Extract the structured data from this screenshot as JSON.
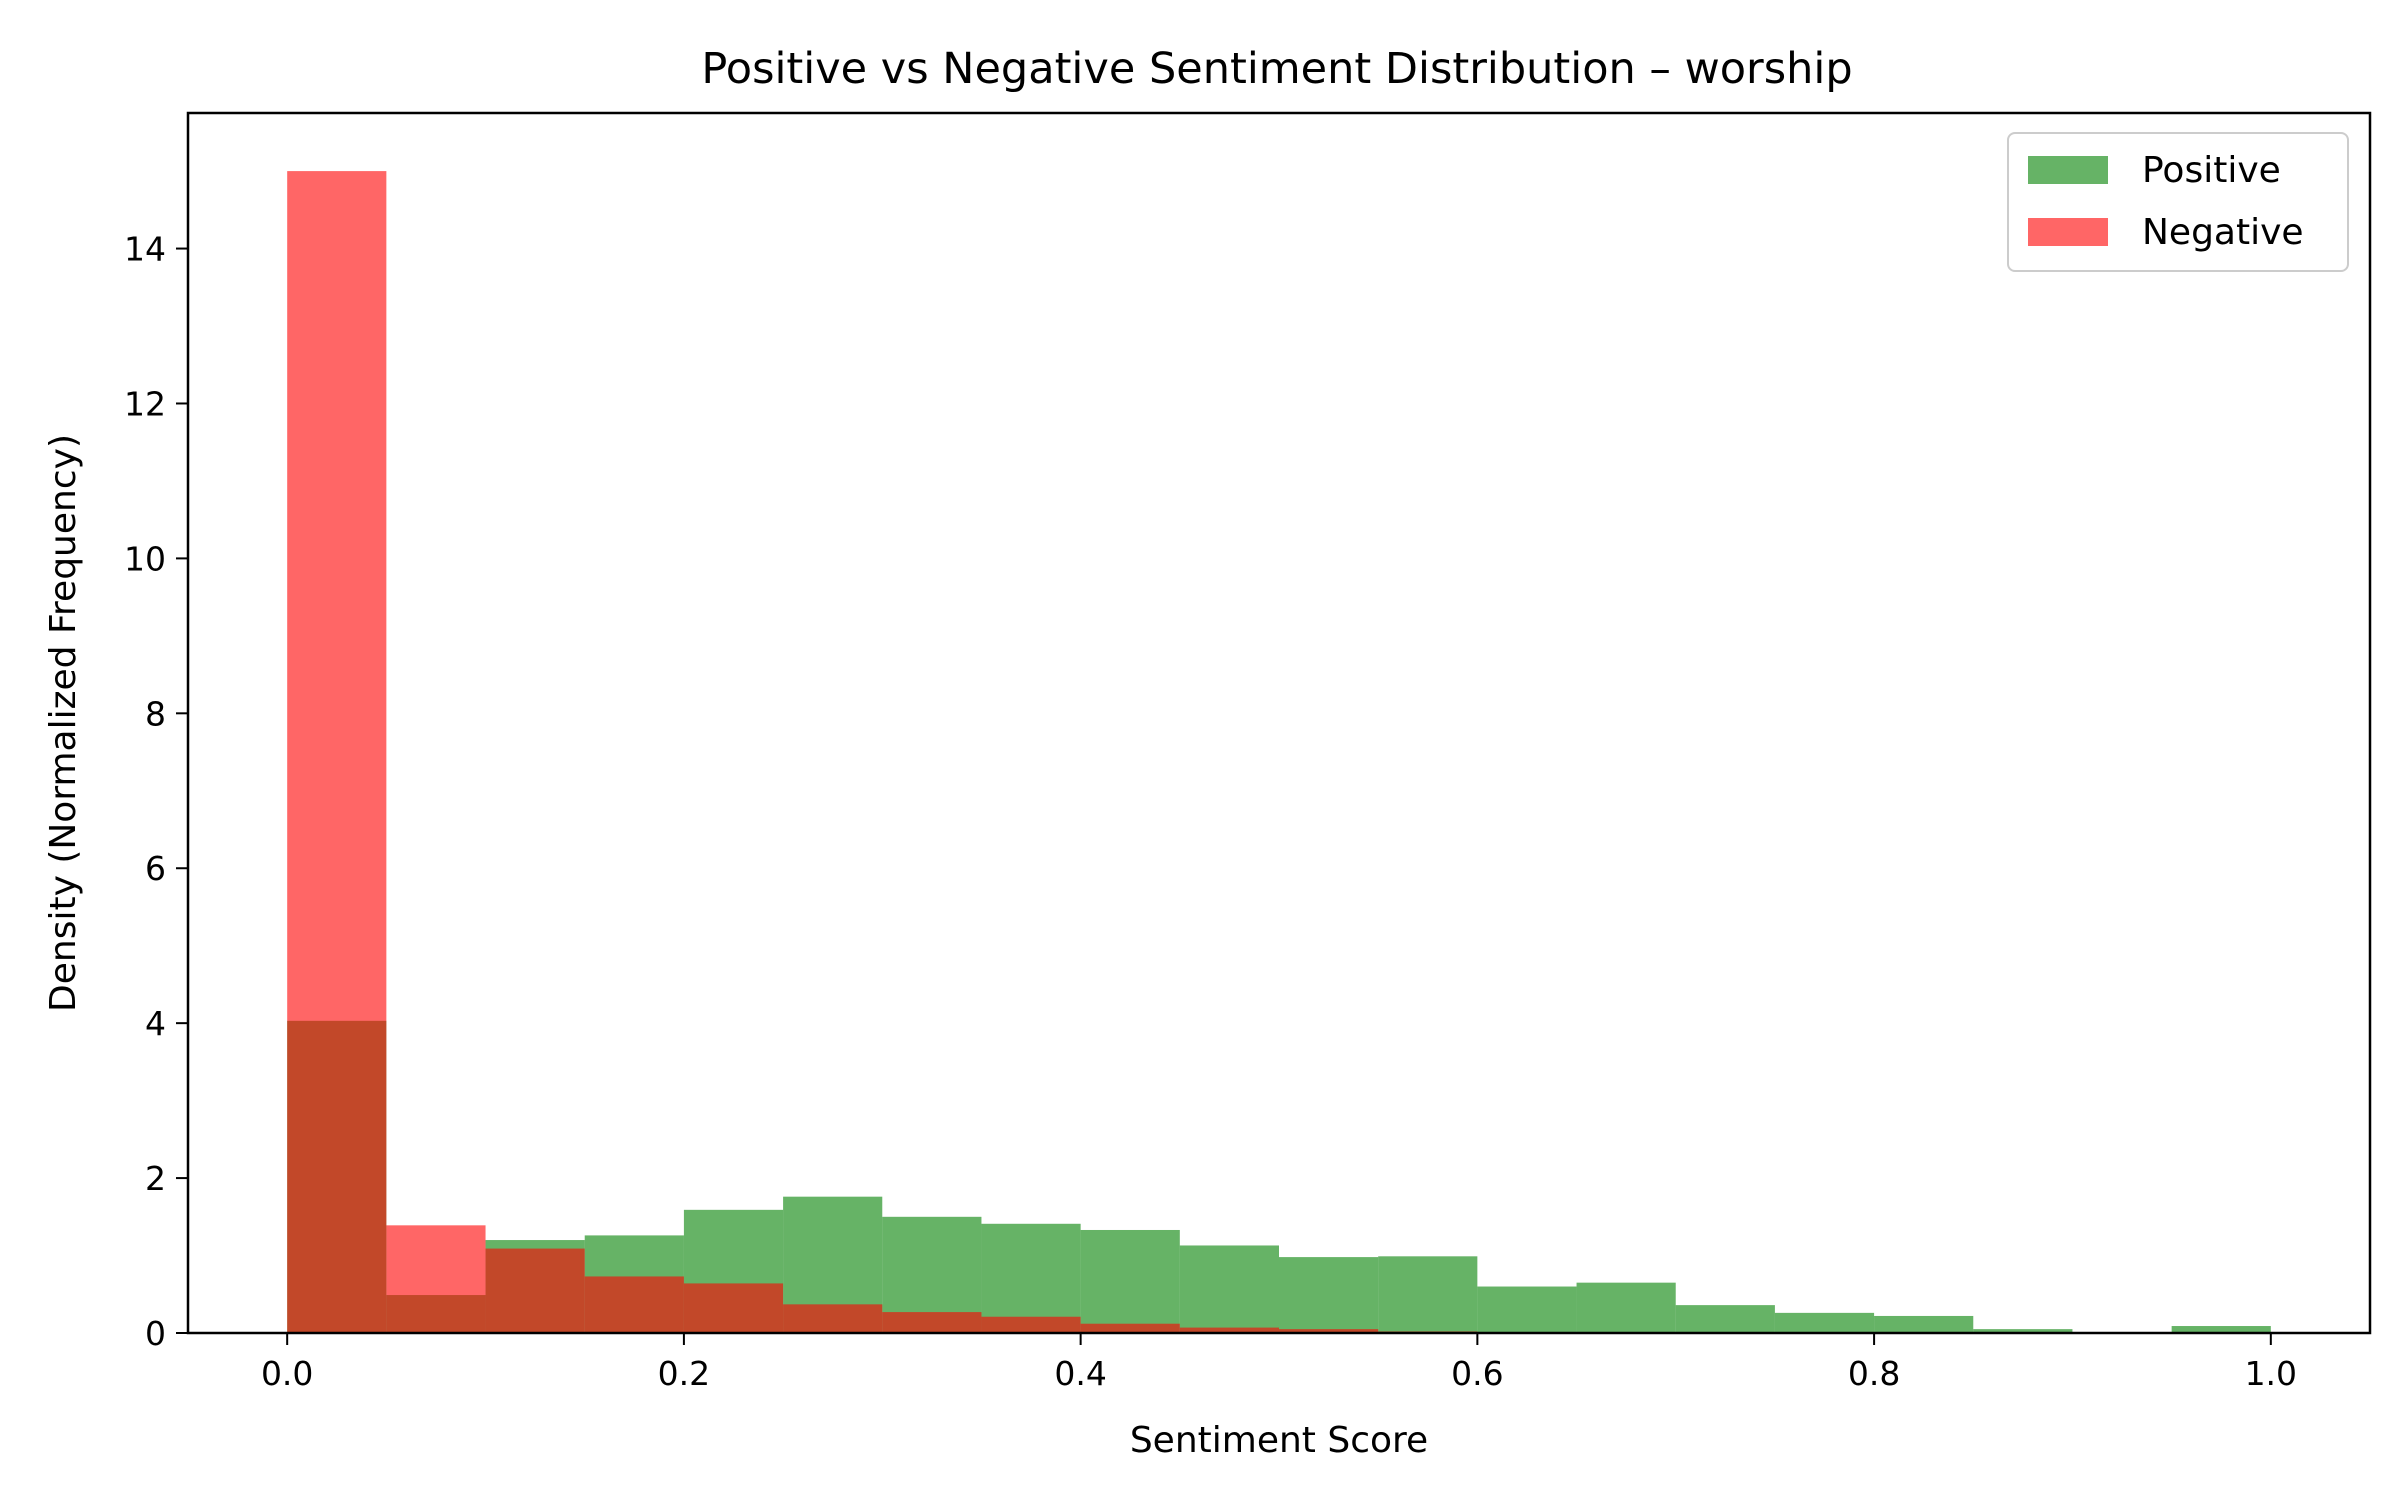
{
  "chart_data": {
    "type": "bar",
    "title": "Positive vs Negative Sentiment Distribution – worship",
    "xlabel": "Sentiment Score",
    "ylabel": "Density (Normalized Frequency)",
    "xlim": [
      -0.05,
      1.05
    ],
    "ylim": [
      0,
      15.75
    ],
    "xticks": [
      0.0,
      0.2,
      0.4,
      0.6,
      0.8,
      1.0
    ],
    "xtick_labels": [
      "0.0",
      "0.2",
      "0.4",
      "0.6",
      "0.8",
      "1.0"
    ],
    "yticks": [
      0,
      2,
      4,
      6,
      8,
      10,
      12,
      14
    ],
    "ytick_labels": [
      "0",
      "2",
      "4",
      "6",
      "8",
      "10",
      "12",
      "14"
    ],
    "grid": false,
    "legend_position": "top-right",
    "bin_edges": [
      0.0,
      0.05,
      0.1,
      0.15,
      0.2,
      0.25,
      0.3,
      0.35,
      0.4,
      0.45,
      0.5,
      0.55,
      0.6,
      0.65,
      0.7,
      0.75,
      0.8,
      0.85,
      0.9,
      0.95,
      1.0
    ],
    "series": [
      {
        "name": "Positive",
        "color": "#008000",
        "alpha": 0.6,
        "values": [
          4.03,
          0.49,
          1.2,
          1.26,
          1.59,
          1.76,
          1.5,
          1.41,
          1.33,
          1.13,
          0.98,
          0.99,
          0.6,
          0.65,
          0.36,
          0.26,
          0.22,
          0.05,
          0.0,
          0.09
        ]
      },
      {
        "name": "Negative",
        "color": "#ff0000",
        "alpha": 0.6,
        "values": [
          15.0,
          1.39,
          1.09,
          0.73,
          0.64,
          0.37,
          0.27,
          0.21,
          0.12,
          0.07,
          0.05,
          0.02,
          0.01,
          0.0,
          0.0,
          0.0,
          0.0,
          0.0,
          0.0,
          0.0
        ]
      }
    ]
  }
}
